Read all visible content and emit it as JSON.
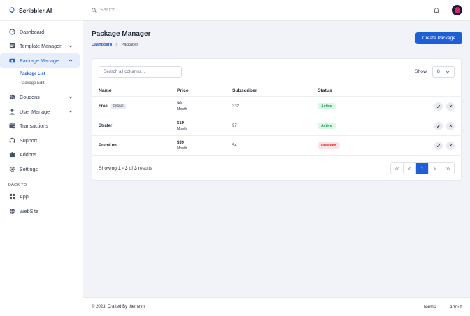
{
  "brand": {
    "name": "Scribbler.AI"
  },
  "topbar": {
    "search_placeholder": "Search"
  },
  "sidebar": {
    "items": [
      {
        "label": "Dashboard",
        "icon": "dashboard-icon"
      },
      {
        "label": "Template Manager",
        "icon": "template-icon",
        "has_children": true
      },
      {
        "label": "Package Manage",
        "icon": "package-icon",
        "has_children": true,
        "active": true
      },
      {
        "label": "Coupons",
        "icon": "coupon-icon",
        "has_children": true
      },
      {
        "label": "User Manage",
        "icon": "user-icon",
        "has_children": true
      },
      {
        "label": "Transactions",
        "icon": "transactions-icon"
      },
      {
        "label": "Support",
        "icon": "support-icon"
      },
      {
        "label": "Addons",
        "icon": "addons-icon"
      },
      {
        "label": "Settings",
        "icon": "settings-icon"
      }
    ],
    "sub_items": [
      {
        "label": "Package List",
        "active": true
      },
      {
        "label": "Package Edit"
      }
    ],
    "section_label": "BACK TO",
    "back_items": [
      {
        "label": "App",
        "icon": "app-grid-icon"
      },
      {
        "label": "WebSite",
        "icon": "globe-icon"
      }
    ]
  },
  "page": {
    "title": "Package Manager",
    "breadcrumb": {
      "link": "Dashboard",
      "separator": ">",
      "current": "Packages"
    },
    "create_button": "Create Package"
  },
  "table": {
    "search_placeholder": "Search all columns...",
    "show_label": "Show",
    "page_size": "8",
    "headers": {
      "name": "Name",
      "price": "Price",
      "subscriber": "Subscriber",
      "status": "Status"
    },
    "rows": [
      {
        "name": "Free",
        "badge": "Default",
        "price": "$0",
        "period": "Month",
        "subscriber": "332",
        "status": "Active"
      },
      {
        "name": "Strater",
        "badge": "",
        "price": "$19",
        "period": "Month",
        "subscriber": "97",
        "status": "Active"
      },
      {
        "name": "Premium",
        "badge": "",
        "price": "$39",
        "period": "Month",
        "subscriber": "54",
        "status": "Disabled"
      }
    ],
    "results": {
      "prefix": "Showing",
      "from": "1",
      "dash": "-",
      "to": "3",
      "of": "of",
      "total": "3",
      "suffix": "results"
    },
    "pagination": {
      "current_page": "1"
    }
  },
  "footer": {
    "copyright": "© 2023. Crafted By themeyn",
    "links": [
      "Terms",
      "About"
    ]
  },
  "colors": {
    "accent": "#1d5fd6",
    "active_status": "#1f9d55",
    "disabled_status": "#e02424"
  }
}
